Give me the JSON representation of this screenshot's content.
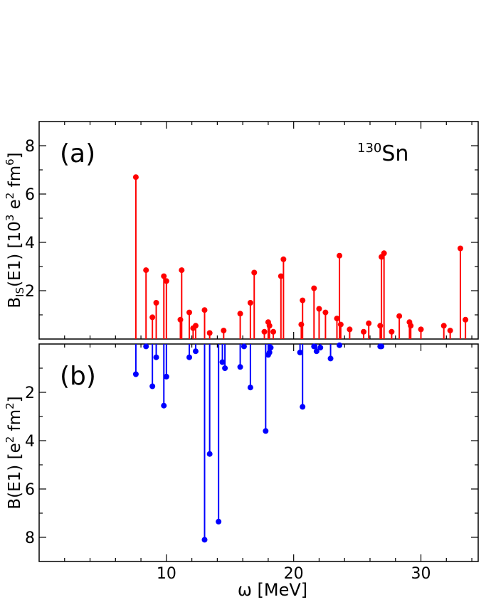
{
  "chart_data": [
    {
      "type": "stem",
      "panel_label": "(a)",
      "annotation_mass": "130",
      "annotation_element": "Sn",
      "ylabel": "B_IS(E1) [10^3 e^2 fm^6]",
      "ylabel_parts": {
        "B": "B",
        "sub": "IS",
        "mid": "(E1) [10",
        "sup1": "3",
        "mid2": " e",
        "sup2": "2",
        "mid3": " fm",
        "sup3": "6",
        "end": "]"
      },
      "xlim": [
        0,
        34.5
      ],
      "ylim": [
        0,
        9
      ],
      "yticks": [
        2,
        4,
        6,
        8
      ],
      "color": "#ff0000",
      "x": [
        7.6,
        8.4,
        8.9,
        9.2,
        9.8,
        10.0,
        11.1,
        11.2,
        11.8,
        12.1,
        12.3,
        13.0,
        13.4,
        14.5,
        15.8,
        16.6,
        16.9,
        17.7,
        18.0,
        18.1,
        18.4,
        19.0,
        19.2,
        20.6,
        20.7,
        21.6,
        22.0,
        22.5,
        23.4,
        23.6,
        23.7,
        24.4,
        25.5,
        25.9,
        26.8,
        26.9,
        27.1,
        27.7,
        28.3,
        29.1,
        29.2,
        30.0,
        31.8,
        32.3,
        33.1,
        33.5
      ],
      "y": [
        6.7,
        2.85,
        0.9,
        1.5,
        2.6,
        2.4,
        0.8,
        2.85,
        1.1,
        0.45,
        0.55,
        1.2,
        0.25,
        0.35,
        1.05,
        1.5,
        2.75,
        0.3,
        0.7,
        0.55,
        0.3,
        2.6,
        3.3,
        0.6,
        1.6,
        2.1,
        1.25,
        1.1,
        0.85,
        3.45,
        0.6,
        0.4,
        0.3,
        0.65,
        0.55,
        3.4,
        3.55,
        0.3,
        0.95,
        0.7,
        0.55,
        0.4,
        0.55,
        0.35,
        3.75,
        0.8
      ]
    },
    {
      "type": "stem",
      "panel_label": "(b)",
      "xlabel": "ω [MeV]",
      "ylabel": "B(E1) [e^2 fm^2]",
      "ylabel_parts": {
        "pre": "B(E1) [e",
        "sup1": "2",
        "mid": " fm",
        "sup2": "2",
        "end": "]"
      },
      "xlim": [
        0,
        34.5
      ],
      "ylim": [
        9,
        0
      ],
      "y_inverted": true,
      "yticks": [
        2,
        4,
        6,
        8
      ],
      "xticks": [
        10,
        20,
        30
      ],
      "color": "#0000ff",
      "x": [
        7.6,
        8.4,
        8.9,
        9.2,
        9.8,
        10.0,
        11.8,
        12.3,
        13.0,
        13.4,
        14.1,
        14.4,
        14.6,
        15.8,
        16.1,
        16.6,
        17.8,
        18.0,
        18.1,
        18.2,
        20.5,
        20.7,
        21.6,
        21.8,
        22.1,
        22.9,
        23.6,
        26.8,
        26.9
      ],
      "y": [
        1.25,
        0.1,
        1.75,
        0.55,
        2.55,
        1.35,
        0.55,
        0.3,
        8.1,
        4.55,
        7.35,
        0.75,
        1.0,
        0.95,
        0.1,
        1.8,
        3.6,
        0.45,
        0.35,
        0.15,
        0.35,
        2.6,
        0.1,
        0.3,
        0.15,
        0.6,
        0.05,
        0.1,
        0.1
      ]
    }
  ]
}
